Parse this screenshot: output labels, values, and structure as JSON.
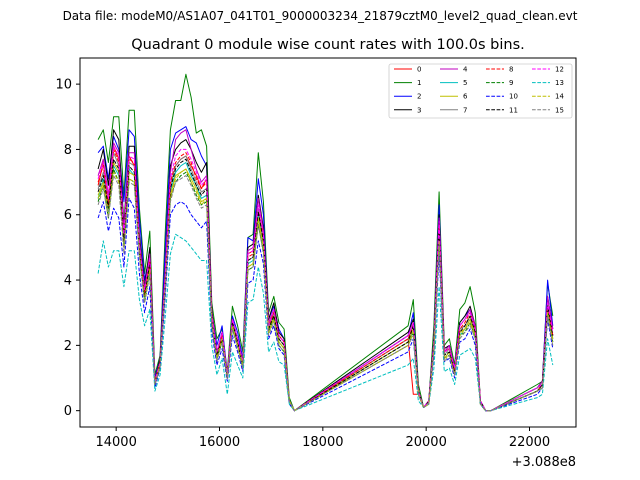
{
  "figure": {
    "suptitle": "Data file: modeM0/AS1A07_041T01_9000003234_21879cztM0_level2_quad_clean.evt"
  },
  "chart_data": {
    "type": "line",
    "title": "Quadrant 0 module wise count rates with 100.0s bins.",
    "xlabel": "",
    "ylabel": "",
    "x_offset_label": "+3.088e8",
    "xlim": [
      13300,
      22900
    ],
    "ylim": [
      -0.5,
      10.8
    ],
    "xticks": [
      14000,
      16000,
      18000,
      20000,
      22000
    ],
    "xtick_labels": [
      "14000",
      "16000",
      "18000",
      "20000",
      "22000"
    ],
    "yticks": [
      0,
      2,
      4,
      6,
      8,
      10
    ],
    "ytick_labels": [
      "0",
      "2",
      "4",
      "6",
      "8",
      "10"
    ],
    "grid": false,
    "legend_location": "upper right",
    "legend_columns": 4,
    "x": [
      13650,
      13750,
      13850,
      13950,
      14050,
      14150,
      14250,
      14350,
      14450,
      14550,
      14650,
      14750,
      14850,
      14950,
      15050,
      15150,
      15250,
      15350,
      15450,
      15550,
      15650,
      15750,
      15850,
      15950,
      16050,
      16150,
      16250,
      16350,
      16450,
      16550,
      16650,
      16750,
      16850,
      16950,
      17050,
      17150,
      17250,
      17350,
      17450,
      19650,
      19750,
      19850,
      19950,
      20050,
      20150,
      20250,
      20350,
      20450,
      20550,
      20650,
      20750,
      20850,
      20950,
      21050,
      21150,
      21250,
      22150,
      22250,
      22350,
      22450
    ],
    "break_after_index": [
      38,
      55
    ],
    "series": [
      {
        "name": "0",
        "color": "#ff0000",
        "dash": "solid",
        "values": [
          6.9,
          7.6,
          6.3,
          8.1,
          7.7,
          5.2,
          7.8,
          7.5,
          4.9,
          3.6,
          4.6,
          0.9,
          1.5,
          4.0,
          6.9,
          7.5,
          7.7,
          7.8,
          7.5,
          7.2,
          6.8,
          7.1,
          2.9,
          1.7,
          2.3,
          1.1,
          2.8,
          2.1,
          1.4,
          4.8,
          4.9,
          6.0,
          5.4,
          2.6,
          3.0,
          2.3,
          2.1,
          0.3,
          0.0,
          2.2,
          0.5,
          0.5,
          0.1,
          0.3,
          2.0,
          5.8,
          1.8,
          1.9,
          1.2,
          2.5,
          2.6,
          2.9,
          2.4,
          0.3,
          0.0,
          0.0,
          0.6,
          0.8,
          3.2,
          2.3
        ]
      },
      {
        "name": "1",
        "color": "#008000",
        "dash": "solid",
        "values": [
          8.3,
          8.6,
          7.6,
          9.0,
          9.0,
          6.6,
          9.2,
          9.2,
          6.2,
          4.2,
          5.5,
          1.1,
          1.7,
          5.5,
          8.6,
          9.5,
          9.5,
          10.3,
          9.6,
          8.5,
          8.6,
          8.1,
          3.3,
          2.2,
          2.5,
          1.2,
          3.2,
          2.6,
          1.8,
          5.3,
          5.4,
          7.9,
          6.4,
          3.0,
          3.5,
          2.7,
          2.5,
          0.4,
          0.0,
          2.6,
          3.4,
          0.8,
          0.1,
          0.3,
          2.6,
          6.7,
          2.0,
          2.2,
          1.4,
          3.1,
          3.3,
          3.8,
          3.0,
          0.3,
          0.0,
          0.0,
          0.8,
          0.9,
          3.9,
          2.9
        ]
      },
      {
        "name": "2",
        "color": "#0000ff",
        "dash": "solid",
        "values": [
          7.9,
          8.1,
          7.1,
          8.4,
          8.0,
          6.4,
          8.6,
          8.4,
          5.9,
          4.0,
          4.8,
          1.0,
          1.6,
          5.0,
          8.0,
          8.5,
          8.6,
          8.7,
          8.3,
          8.2,
          7.8,
          7.5,
          3.0,
          2.0,
          2.6,
          1.1,
          2.9,
          2.4,
          1.6,
          5.3,
          5.2,
          7.1,
          6.0,
          2.8,
          3.2,
          2.5,
          2.2,
          0.3,
          0.0,
          2.3,
          3.0,
          0.6,
          0.1,
          0.3,
          2.2,
          6.3,
          1.8,
          2.0,
          1.3,
          2.7,
          2.9,
          3.1,
          2.5,
          0.3,
          0.0,
          0.0,
          0.7,
          0.9,
          4.0,
          2.6
        ]
      },
      {
        "name": "3",
        "color": "#000000",
        "dash": "solid",
        "values": [
          7.4,
          8.0,
          6.9,
          8.6,
          8.3,
          5.7,
          8.1,
          8.1,
          5.4,
          3.8,
          5.0,
          0.9,
          1.6,
          4.4,
          7.5,
          8.0,
          8.2,
          8.3,
          8.0,
          7.6,
          7.3,
          7.6,
          3.1,
          1.8,
          2.4,
          1.1,
          2.8,
          2.2,
          1.5,
          5.0,
          5.1,
          6.6,
          5.6,
          2.8,
          3.3,
          2.4,
          2.2,
          0.3,
          0.0,
          2.4,
          2.8,
          0.6,
          0.1,
          0.3,
          2.2,
          6.0,
          1.9,
          2.0,
          1.3,
          2.7,
          2.9,
          3.2,
          2.6,
          0.3,
          0.0,
          0.0,
          0.7,
          0.9,
          3.5,
          2.5
        ]
      },
      {
        "name": "4",
        "color": "#bf00bf",
        "dash": "solid",
        "values": [
          7.2,
          7.7,
          6.6,
          8.2,
          7.9,
          5.5,
          7.9,
          7.9,
          5.2,
          3.7,
          4.8,
          0.9,
          1.5,
          4.3,
          7.3,
          8.3,
          8.5,
          8.6,
          8.0,
          7.4,
          7.0,
          7.2,
          3.0,
          1.8,
          2.4,
          1.1,
          2.8,
          2.2,
          1.5,
          4.9,
          5.0,
          6.5,
          5.5,
          2.7,
          3.1,
          2.3,
          2.1,
          0.3,
          0.0,
          2.3,
          2.7,
          0.6,
          0.1,
          0.3,
          2.1,
          5.9,
          1.8,
          2.0,
          1.3,
          2.6,
          2.8,
          3.1,
          2.6,
          0.3,
          0.0,
          0.0,
          0.7,
          0.9,
          3.5,
          2.5
        ]
      },
      {
        "name": "5",
        "color": "#00bfbf",
        "dash": "solid",
        "values": [
          6.5,
          7.1,
          6.1,
          7.5,
          7.2,
          5.0,
          7.4,
          7.2,
          4.9,
          3.4,
          4.3,
          0.8,
          1.4,
          3.9,
          6.7,
          7.3,
          7.5,
          7.6,
          7.2,
          6.9,
          6.5,
          6.6,
          2.7,
          1.6,
          2.2,
          1.0,
          2.6,
          2.0,
          1.4,
          4.5,
          4.6,
          6.0,
          5.1,
          2.4,
          2.8,
          2.1,
          1.9,
          0.3,
          0.0,
          2.1,
          2.4,
          0.5,
          0.1,
          0.2,
          1.9,
          5.4,
          1.6,
          1.8,
          1.1,
          2.3,
          2.5,
          2.8,
          2.3,
          0.2,
          0.0,
          0.0,
          0.6,
          0.8,
          3.2,
          2.2
        ]
      },
      {
        "name": "6",
        "color": "#bfbf00",
        "dash": "solid",
        "values": [
          6.6,
          7.0,
          6.2,
          7.6,
          7.3,
          5.1,
          7.3,
          7.2,
          5.0,
          3.5,
          4.4,
          0.8,
          1.4,
          3.9,
          6.6,
          7.2,
          7.3,
          7.4,
          7.1,
          6.8,
          6.4,
          6.5,
          2.7,
          1.6,
          2.2,
          1.0,
          2.6,
          2.0,
          1.4,
          4.4,
          4.5,
          5.9,
          5.0,
          2.4,
          2.9,
          2.1,
          1.9,
          0.3,
          0.0,
          2.1,
          2.5,
          0.5,
          0.1,
          0.2,
          1.9,
          5.3,
          1.6,
          1.8,
          1.1,
          2.4,
          2.5,
          2.8,
          2.3,
          0.2,
          0.0,
          0.0,
          0.6,
          0.8,
          3.1,
          2.2
        ]
      },
      {
        "name": "7",
        "color": "#808080",
        "dash": "solid",
        "values": [
          6.8,
          7.3,
          6.4,
          7.9,
          7.5,
          5.3,
          7.6,
          7.5,
          5.1,
          3.6,
          4.6,
          0.9,
          1.5,
          4.1,
          6.9,
          7.5,
          7.7,
          7.8,
          7.4,
          7.0,
          6.7,
          6.8,
          2.8,
          1.7,
          2.3,
          1.0,
          2.7,
          2.1,
          1.4,
          4.6,
          4.7,
          6.2,
          5.2,
          2.5,
          3.0,
          2.2,
          2.0,
          0.3,
          0.0,
          2.2,
          2.6,
          0.6,
          0.1,
          0.3,
          2.0,
          5.5,
          1.7,
          1.9,
          1.2,
          2.5,
          2.6,
          2.9,
          2.4,
          0.3,
          0.0,
          0.0,
          0.7,
          0.8,
          3.3,
          2.3
        ]
      },
      {
        "name": "8",
        "color": "#ff0000",
        "dash": "dashed",
        "values": [
          7.0,
          7.5,
          6.3,
          8.0,
          7.6,
          5.3,
          7.7,
          7.6,
          5.0,
          3.6,
          4.6,
          0.9,
          1.5,
          4.0,
          7.0,
          7.6,
          7.8,
          7.9,
          7.6,
          7.1,
          6.8,
          7.0,
          2.9,
          1.7,
          2.3,
          1.1,
          2.7,
          2.1,
          1.4,
          4.7,
          4.8,
          6.1,
          5.3,
          2.6,
          3.0,
          2.3,
          2.1,
          0.3,
          0.0,
          2.2,
          2.6,
          0.6,
          0.1,
          0.3,
          2.0,
          5.7,
          1.8,
          1.9,
          1.2,
          2.5,
          2.7,
          3.0,
          2.5,
          0.3,
          0.0,
          0.0,
          0.6,
          0.8,
          3.2,
          2.3
        ]
      },
      {
        "name": "9",
        "color": "#008000",
        "dash": "dashed",
        "values": [
          6.4,
          6.9,
          5.9,
          7.4,
          7.0,
          5.0,
          7.1,
          7.0,
          4.8,
          3.3,
          4.2,
          0.8,
          1.4,
          3.8,
          6.5,
          7.0,
          7.2,
          7.3,
          7.0,
          6.6,
          6.3,
          6.4,
          2.6,
          1.6,
          2.1,
          1.0,
          2.5,
          2.0,
          1.3,
          4.3,
          4.4,
          5.7,
          4.9,
          2.4,
          2.8,
          2.0,
          1.8,
          0.3,
          0.0,
          2.0,
          2.4,
          0.5,
          0.1,
          0.2,
          1.8,
          5.2,
          1.6,
          1.7,
          1.1,
          2.3,
          2.4,
          2.7,
          2.2,
          0.2,
          0.0,
          0.0,
          0.6,
          0.7,
          3.0,
          2.1
        ]
      },
      {
        "name": "10",
        "color": "#0000ff",
        "dash": "dashed",
        "values": [
          5.9,
          6.4,
          5.5,
          6.2,
          5.9,
          4.4,
          6.5,
          6.2,
          4.2,
          3.0,
          3.8,
          0.7,
          1.3,
          3.5,
          6.0,
          6.3,
          6.4,
          6.3,
          6.0,
          5.8,
          5.6,
          5.8,
          2.4,
          1.4,
          1.9,
          0.9,
          2.3,
          1.8,
          1.2,
          3.9,
          4.0,
          5.2,
          4.5,
          2.2,
          2.6,
          1.9,
          1.7,
          0.2,
          0.0,
          1.8,
          2.2,
          0.5,
          0.1,
          0.2,
          1.7,
          4.8,
          1.5,
          1.6,
          1.0,
          2.1,
          2.2,
          2.5,
          2.0,
          0.2,
          0.0,
          0.0,
          0.5,
          0.7,
          2.8,
          1.9
        ]
      },
      {
        "name": "11",
        "color": "#000000",
        "dash": "dashed",
        "values": [
          6.7,
          7.2,
          6.2,
          7.7,
          7.4,
          5.2,
          7.5,
          7.3,
          5.0,
          3.5,
          4.5,
          0.9,
          1.5,
          4.0,
          6.8,
          7.4,
          7.6,
          7.7,
          7.3,
          6.9,
          6.6,
          6.8,
          2.8,
          1.7,
          2.2,
          1.0,
          2.7,
          2.1,
          1.4,
          4.6,
          4.7,
          6.1,
          5.2,
          2.5,
          2.9,
          2.2,
          2.0,
          0.3,
          0.0,
          2.1,
          2.6,
          0.6,
          0.1,
          0.3,
          2.0,
          5.5,
          1.7,
          1.8,
          1.2,
          2.4,
          2.6,
          2.9,
          2.4,
          0.3,
          0.0,
          0.0,
          0.6,
          0.8,
          3.2,
          2.3
        ]
      },
      {
        "name": "12",
        "color": "#ff00ff",
        "dash": "dashed",
        "values": [
          7.1,
          7.6,
          6.5,
          8.1,
          7.8,
          5.4,
          7.8,
          7.7,
          5.1,
          3.7,
          4.7,
          0.9,
          1.5,
          4.2,
          7.1,
          7.8,
          8.0,
          8.0,
          7.7,
          7.3,
          6.9,
          7.1,
          2.9,
          1.8,
          2.4,
          1.1,
          2.8,
          2.2,
          1.5,
          4.8,
          4.9,
          6.3,
          5.4,
          2.6,
          3.1,
          2.3,
          2.1,
          0.3,
          0.0,
          2.3,
          2.7,
          0.6,
          0.1,
          0.3,
          2.1,
          5.8,
          1.8,
          1.9,
          1.3,
          2.6,
          2.8,
          3.0,
          2.5,
          0.3,
          0.0,
          0.0,
          0.7,
          0.8,
          3.3,
          2.4
        ]
      },
      {
        "name": "13",
        "color": "#00bfbf",
        "dash": "dashed",
        "values": [
          4.2,
          5.2,
          4.4,
          4.9,
          4.9,
          3.8,
          4.9,
          4.9,
          3.4,
          2.6,
          3.1,
          0.6,
          1.1,
          2.9,
          4.8,
          5.4,
          5.3,
          5.2,
          5.0,
          4.8,
          4.6,
          4.6,
          2.0,
          1.1,
          1.6,
          0.5,
          1.8,
          1.4,
          1.0,
          3.3,
          3.4,
          4.4,
          3.6,
          1.8,
          2.1,
          1.5,
          1.4,
          0.2,
          0.0,
          1.4,
          1.6,
          0.3,
          0.1,
          0.2,
          1.3,
          3.8,
          1.2,
          1.3,
          0.8,
          1.7,
          1.8,
          1.9,
          1.6,
          0.2,
          0.0,
          0.0,
          0.4,
          0.5,
          2.2,
          1.4
        ]
      },
      {
        "name": "14",
        "color": "#bfbf00",
        "dash": "dashed",
        "values": [
          6.5,
          6.9,
          6.0,
          7.3,
          7.0,
          4.9,
          7.1,
          7.0,
          4.8,
          3.4,
          4.3,
          0.8,
          1.4,
          3.8,
          6.5,
          7.1,
          7.3,
          7.4,
          7.0,
          6.7,
          6.3,
          6.5,
          2.7,
          1.6,
          2.2,
          1.0,
          2.6,
          2.0,
          1.4,
          4.4,
          4.5,
          5.8,
          5.0,
          2.4,
          2.8,
          2.1,
          1.9,
          0.3,
          0.0,
          2.0,
          2.4,
          0.5,
          0.1,
          0.2,
          1.9,
          5.2,
          1.6,
          1.7,
          1.1,
          2.3,
          2.5,
          2.7,
          2.2,
          0.2,
          0.0,
          0.0,
          0.6,
          0.7,
          3.0,
          2.1
        ]
      },
      {
        "name": "15",
        "color": "#808080",
        "dash": "dashed",
        "values": [
          6.3,
          6.8,
          5.9,
          7.2,
          6.9,
          4.8,
          7.0,
          6.9,
          4.7,
          3.3,
          4.2,
          0.8,
          1.3,
          3.7,
          6.4,
          7.0,
          7.1,
          7.2,
          6.9,
          6.5,
          6.2,
          6.3,
          2.6,
          1.5,
          2.1,
          1.0,
          2.5,
          1.9,
          1.3,
          4.3,
          4.4,
          5.7,
          4.8,
          2.3,
          2.7,
          2.0,
          1.8,
          0.3,
          0.0,
          2.0,
          2.3,
          0.5,
          0.1,
          0.2,
          1.8,
          5.1,
          1.5,
          1.7,
          1.1,
          2.2,
          2.4,
          2.6,
          2.2,
          0.2,
          0.0,
          0.0,
          0.6,
          0.7,
          2.9,
          2.0
        ]
      }
    ]
  }
}
